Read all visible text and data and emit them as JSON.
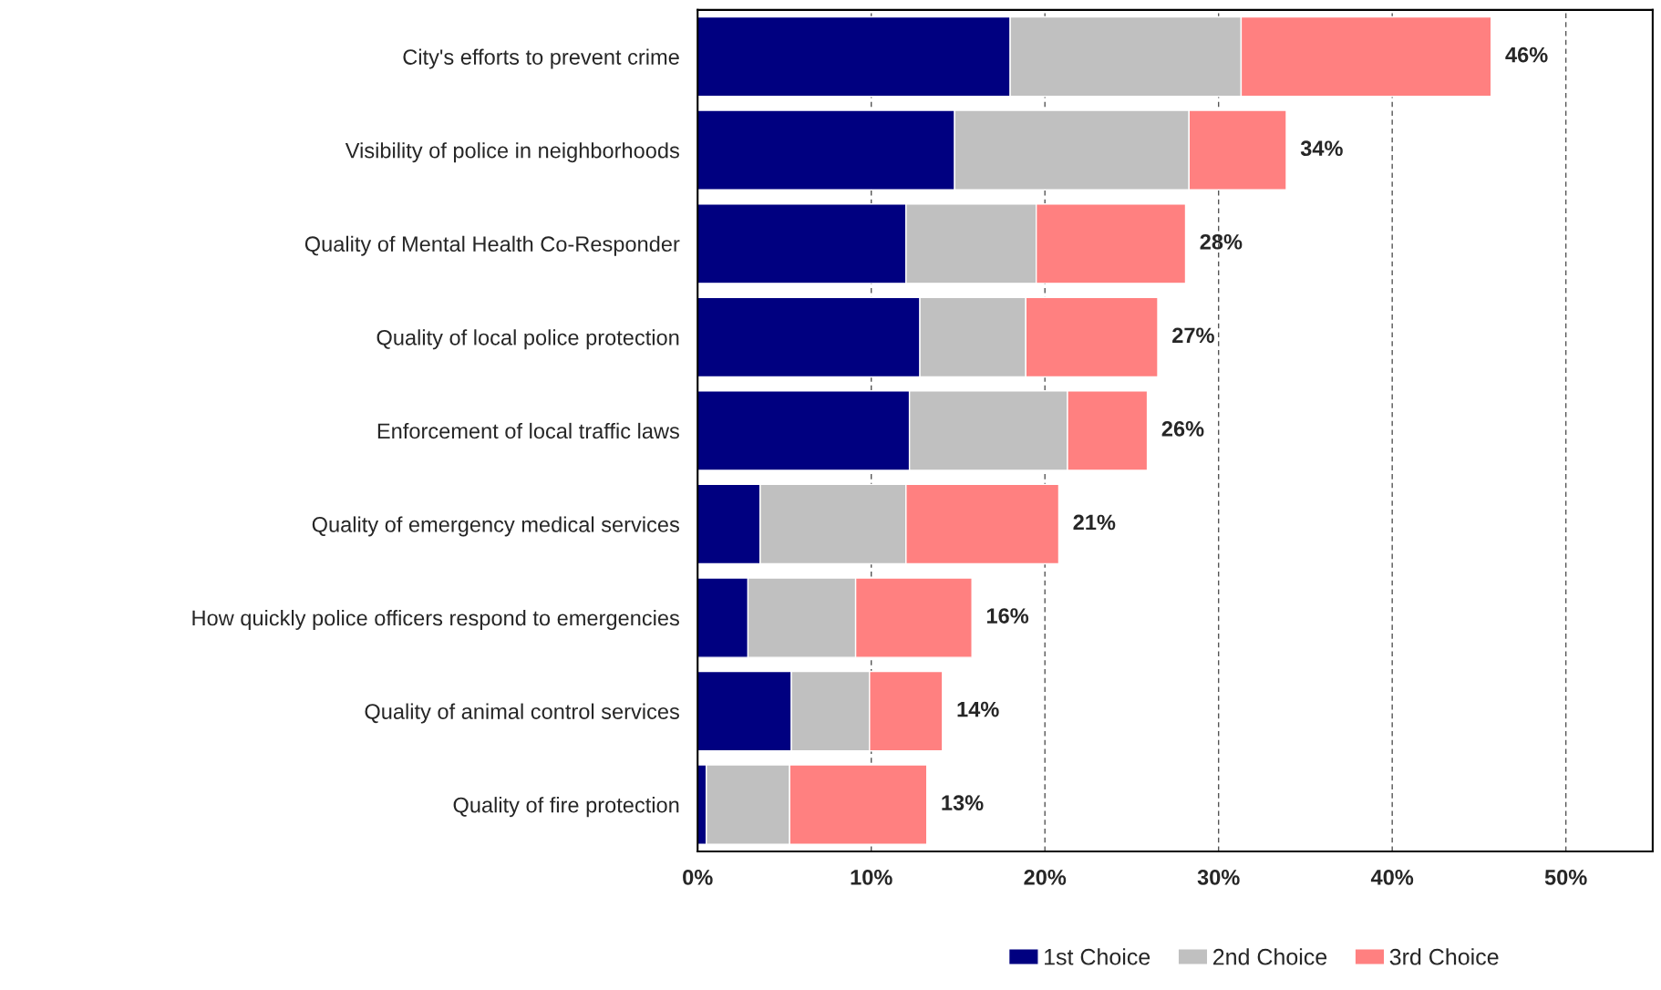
{
  "chart_data": {
    "type": "bar",
    "orientation": "horizontal",
    "stacked": true,
    "categories": [
      "City's efforts to prevent crime",
      "Visibility of police in neighborhoods",
      "Quality of Mental Health Co-Responder",
      "Quality of local police protection",
      "Enforcement of local traffic laws",
      "Quality of emergency medical services",
      "How quickly police officers respond to emergencies",
      "Quality of animal control services",
      "Quality of fire protection"
    ],
    "series": [
      {
        "name": "1st Choice",
        "color": "#000080",
        "values": [
          18.0,
          14.8,
          12.0,
          12.8,
          12.2,
          3.6,
          2.9,
          5.4,
          0.5
        ]
      },
      {
        "name": "2nd Choice",
        "color": "#c0c0c0",
        "values": [
          13.3,
          13.5,
          7.5,
          6.1,
          9.1,
          8.4,
          6.2,
          4.5,
          4.8
        ]
      },
      {
        "name": "3rd Choice",
        "color": "#ff8080",
        "values": [
          14.4,
          5.6,
          8.6,
          7.6,
          4.6,
          8.8,
          6.7,
          4.2,
          7.9
        ]
      }
    ],
    "totals": [
      "46%",
      "34%",
      "28%",
      "27%",
      "26%",
      "21%",
      "16%",
      "14%",
      "13%"
    ],
    "xlim": [
      0,
      55
    ],
    "xticks": [
      {
        "value": 0,
        "label": "0%"
      },
      {
        "value": 10,
        "label": "10%"
      },
      {
        "value": 20,
        "label": "20%"
      },
      {
        "value": 30,
        "label": "30%"
      },
      {
        "value": 40,
        "label": "40%"
      },
      {
        "value": 50,
        "label": "50%"
      }
    ],
    "grid": "x",
    "legend": "bottom"
  }
}
